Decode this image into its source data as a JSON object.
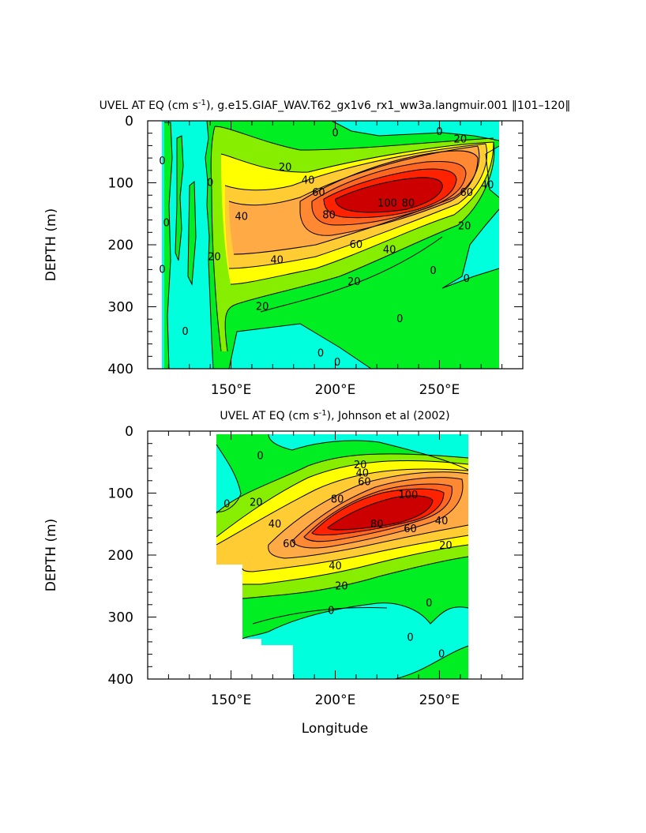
{
  "colors": {
    "c_neg": "#00ffdd",
    "c_0": "#00ee22",
    "c_20": "#88ee00",
    "c_30": "#ffff00",
    "c_40": "#ffcc33",
    "c_50": "#ffaa44",
    "c_60": "#ff8833",
    "c_70": "#ff6622",
    "c_80": "#ff2200",
    "c_100": "#cc0000",
    "contour": "#000000"
  },
  "chart_data": [
    {
      "type": "contour",
      "title": "UVEL AT EQ (cm s",
      "title_sup": "-1",
      "title_rest": "), g.e15.GIAF_WAV.T62_gx1v6_rx1_ww3a.langmuir.001 ‖101–120‖",
      "ylabel": "DEPTH (m)",
      "xlabel": "",
      "xlim": [
        110,
        290
      ],
      "ylim": [
        400,
        0
      ],
      "x_ticks": [
        150,
        200,
        250
      ],
      "x_tick_labels": [
        "150°E",
        "200°E",
        "250°E"
      ],
      "y_ticks": [
        0,
        100,
        200,
        300,
        400
      ],
      "y_tick_labels": [
        "0",
        "100",
        "200",
        "300",
        "400"
      ],
      "data_extent": {
        "lon": [
          117,
          280
        ],
        "depth": [
          0,
          400
        ]
      },
      "core": {
        "lon": 230,
        "depth": 120,
        "max_value": 100
      },
      "contour_labels": [
        {
          "text": "0",
          "lon": 200,
          "depth": 20
        },
        {
          "text": "0",
          "lon": 250,
          "depth": 18
        },
        {
          "text": "20",
          "lon": 260,
          "depth": 30
        },
        {
          "text": "0",
          "lon": 117,
          "depth": 65
        },
        {
          "text": "0",
          "lon": 140,
          "depth": 100
        },
        {
          "text": "20",
          "lon": 176,
          "depth": 75
        },
        {
          "text": "40",
          "lon": 187,
          "depth": 96
        },
        {
          "text": "60",
          "lon": 192,
          "depth": 116
        },
        {
          "text": "80",
          "lon": 197,
          "depth": 152
        },
        {
          "text": "100",
          "lon": 225,
          "depth": 133
        },
        {
          "text": "80",
          "lon": 235,
          "depth": 133
        },
        {
          "text": "60",
          "lon": 263,
          "depth": 116
        },
        {
          "text": "40",
          "lon": 273,
          "depth": 104
        },
        {
          "text": "20",
          "lon": 262,
          "depth": 170
        },
        {
          "text": "40",
          "lon": 155,
          "depth": 155
        },
        {
          "text": "20",
          "lon": 142,
          "depth": 220
        },
        {
          "text": "0",
          "lon": 119,
          "depth": 165
        },
        {
          "text": "0",
          "lon": 117,
          "depth": 240
        },
        {
          "text": "60",
          "lon": 210,
          "depth": 200
        },
        {
          "text": "40",
          "lon": 226,
          "depth": 208
        },
        {
          "text": "20",
          "lon": 209,
          "depth": 260
        },
        {
          "text": "40",
          "lon": 172,
          "depth": 225
        },
        {
          "text": "20",
          "lon": 165,
          "depth": 300
        },
        {
          "text": "0",
          "lon": 247,
          "depth": 242
        },
        {
          "text": "0",
          "lon": 263,
          "depth": 255
        },
        {
          "text": "0",
          "lon": 231,
          "depth": 320
        },
        {
          "text": "0",
          "lon": 193,
          "depth": 375
        },
        {
          "text": "0",
          "lon": 201,
          "depth": 390
        },
        {
          "text": "0",
          "lon": 128,
          "depth": 340
        }
      ]
    },
    {
      "type": "contour",
      "title": "UVEL AT EQ (cm s",
      "title_sup": "-1",
      "title_rest": "), Johnson et al (2002)",
      "ylabel": "DEPTH (m)",
      "xlabel": "Longitude",
      "xlim": [
        110,
        290
      ],
      "ylim": [
        400,
        0
      ],
      "x_ticks": [
        150,
        200,
        250
      ],
      "x_tick_labels": [
        "150°E",
        "200°E",
        "250°E"
      ],
      "y_ticks": [
        0,
        100,
        200,
        300,
        400
      ],
      "y_tick_labels": [
        "0",
        "100",
        "200",
        "300",
        "400"
      ],
      "data_extent": {
        "lon": [
          143,
          265
        ],
        "depth": [
          10,
          400
        ]
      },
      "core": {
        "lon": 222,
        "depth": 130,
        "max_value": 100
      },
      "contour_labels": [
        {
          "text": "0",
          "lon": 164,
          "depth": 40
        },
        {
          "text": "0",
          "lon": 148,
          "depth": 118
        },
        {
          "text": "20",
          "lon": 212,
          "depth": 55
        },
        {
          "text": "40",
          "lon": 213,
          "depth": 68
        },
        {
          "text": "60",
          "lon": 214,
          "depth": 82
        },
        {
          "text": "80",
          "lon": 201,
          "depth": 110
        },
        {
          "text": "100",
          "lon": 235,
          "depth": 103
        },
        {
          "text": "20",
          "lon": 162,
          "depth": 115
        },
        {
          "text": "40",
          "lon": 171,
          "depth": 150
        },
        {
          "text": "60",
          "lon": 178,
          "depth": 182
        },
        {
          "text": "80",
          "lon": 220,
          "depth": 150
        },
        {
          "text": "60",
          "lon": 236,
          "depth": 158
        },
        {
          "text": "40",
          "lon": 251,
          "depth": 145
        },
        {
          "text": "20",
          "lon": 253,
          "depth": 185
        },
        {
          "text": "40",
          "lon": 200,
          "depth": 218
        },
        {
          "text": "20",
          "lon": 203,
          "depth": 250
        },
        {
          "text": "0",
          "lon": 198,
          "depth": 290
        },
        {
          "text": "0",
          "lon": 245,
          "depth": 278
        },
        {
          "text": "0",
          "lon": 236,
          "depth": 333
        },
        {
          "text": "0",
          "lon": 251,
          "depth": 360
        }
      ]
    }
  ]
}
